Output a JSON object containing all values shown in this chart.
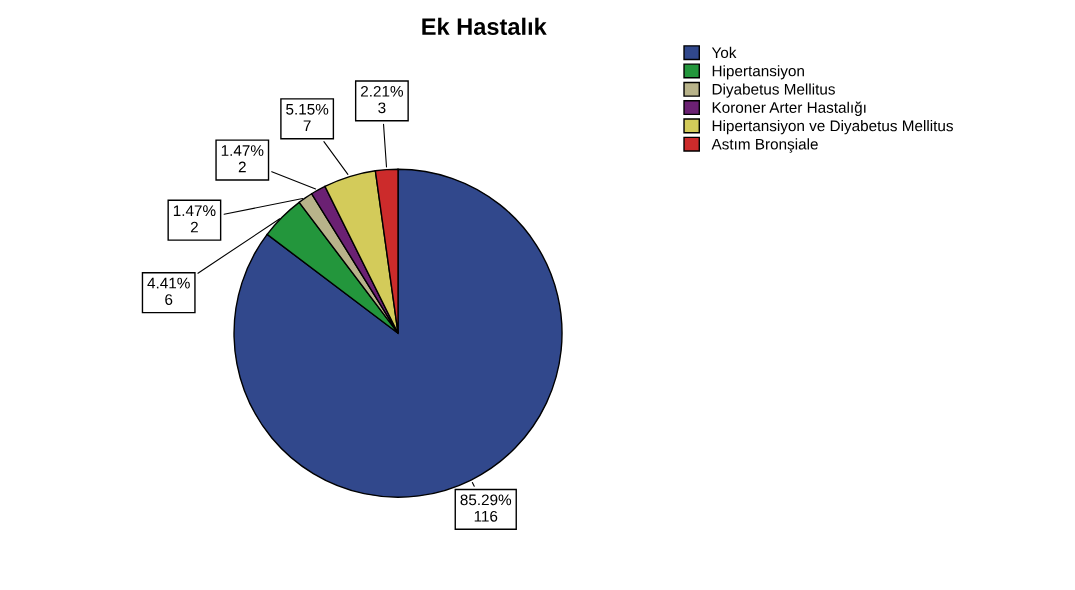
{
  "chart_data": {
    "type": "pie",
    "title": "Ek Hastalık",
    "categories": [
      "Yok",
      "Hipertansiyon",
      "Diyabetus Mellitus",
      "Koroner Arter Hastalığı",
      "Hipertansiyon ve Diyabetus Mellitus",
      "Astım Bronşiale"
    ],
    "values": [
      116,
      6,
      2,
      2,
      7,
      3
    ],
    "colors": [
      "#31488c",
      "#23963c",
      "#b8b38a",
      "#6b2173",
      "#d3cb5a",
      "#cc2b2b"
    ],
    "value_labels": [
      "85.29%\n116",
      "4.41%\n6",
      "1.47%\n2",
      "1.47%\n2",
      "5.15%\n7",
      "2.21%\n3"
    ],
    "legend": "top right"
  }
}
